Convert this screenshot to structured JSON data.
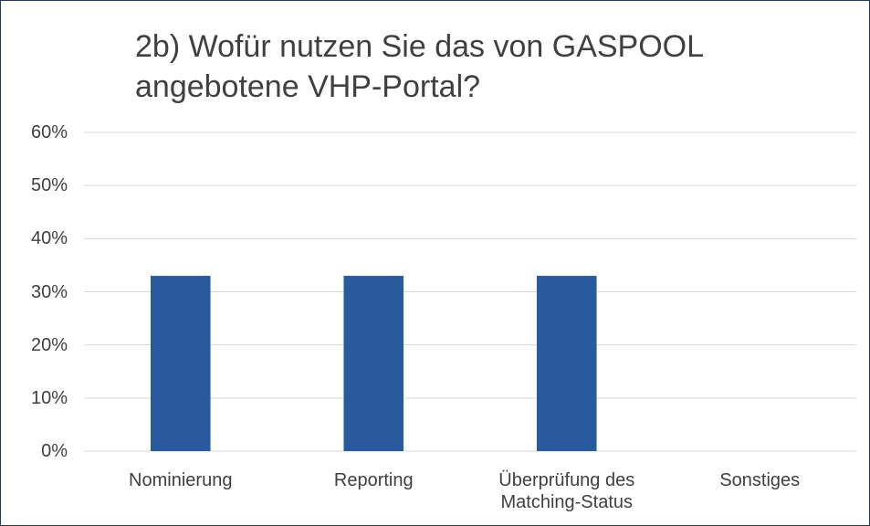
{
  "chart_data": {
    "type": "bar",
    "title": "2b) Wofür nutzen Sie das von GASPOOL angebotene VHP-Portal?",
    "categories": [
      "Nominierung",
      "Reporting",
      "Überprüfung des Matching-Status",
      "Sonstiges"
    ],
    "values": [
      33,
      33,
      33,
      0
    ],
    "color": "#2a5a9e",
    "ylim": [
      0,
      60
    ],
    "yticks": [
      {
        "value": 0,
        "label": "0%"
      },
      {
        "value": 10,
        "label": "10%"
      },
      {
        "value": 20,
        "label": "20%"
      },
      {
        "value": 30,
        "label": "30%"
      },
      {
        "value": 40,
        "label": "40%"
      },
      {
        "value": 50,
        "label": "50%"
      },
      {
        "value": 60,
        "label": "60%"
      }
    ],
    "grid": true
  }
}
